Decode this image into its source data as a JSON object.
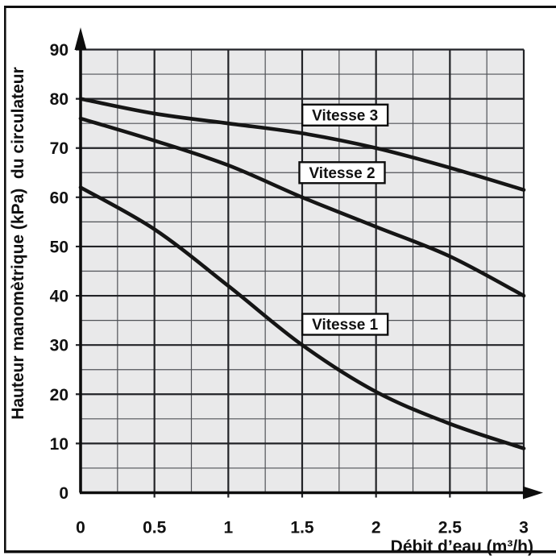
{
  "chart_data": {
    "type": "line",
    "title": "",
    "xlabel": "Débit d’eau (m³/h)",
    "ylabel": "Hauteur manomètrique (kPa)  du circulateur",
    "xlim": [
      0,
      3
    ],
    "ylim": [
      0,
      90
    ],
    "grid": true,
    "grid_minor_step_x": 0.25,
    "grid_minor_step_y": 5,
    "x_ticks": [
      {
        "value": 0,
        "label": "0"
      },
      {
        "value": 0.5,
        "label": "0.5"
      },
      {
        "value": 1,
        "label": "1"
      },
      {
        "value": 1.5,
        "label": "1.5"
      },
      {
        "value": 2,
        "label": "2"
      },
      {
        "value": 2.5,
        "label": "2.5"
      },
      {
        "value": 3,
        "label": "3"
      }
    ],
    "y_ticks": [
      {
        "value": 0,
        "label": "0"
      },
      {
        "value": 10,
        "label": "10"
      },
      {
        "value": 20,
        "label": "20"
      },
      {
        "value": 30,
        "label": "30"
      },
      {
        "value": 40,
        "label": "40"
      },
      {
        "value": 50,
        "label": "50"
      },
      {
        "value": 60,
        "label": "60"
      },
      {
        "value": 70,
        "label": "70"
      },
      {
        "value": 80,
        "label": "80"
      },
      {
        "value": 90,
        "label": "90"
      }
    ],
    "x": [
      0,
      0.5,
      1,
      1.5,
      2,
      2.5,
      3
    ],
    "series": [
      {
        "name": "Vitesse 3",
        "values": [
          80,
          77,
          75,
          73,
          70,
          66,
          61.5
        ]
      },
      {
        "name": "Vitesse 2",
        "values": [
          76,
          71.5,
          66.5,
          60,
          54,
          48,
          40
        ]
      },
      {
        "name": "Vitesse 1",
        "values": [
          62,
          53.5,
          42,
          30,
          20.5,
          14,
          9
        ]
      }
    ],
    "annotations": [
      {
        "text": "Vitesse 3",
        "at_x": 1.79,
        "at_y": 76.7
      },
      {
        "text": "Vitesse 2",
        "at_x": 1.77,
        "at_y": 65.0
      },
      {
        "text": "Vitesse 1",
        "at_x": 1.79,
        "at_y": 34.2
      }
    ],
    "colors": {
      "curve": "#151515",
      "grid_minor": "#505257",
      "grid_major": "#222327",
      "plot_background": "#e9e9ea",
      "axis": "#0d0d0d",
      "frame": "#101010",
      "label_box_fill": "#ffffff",
      "label_box_border": "#0d0d0d"
    }
  }
}
